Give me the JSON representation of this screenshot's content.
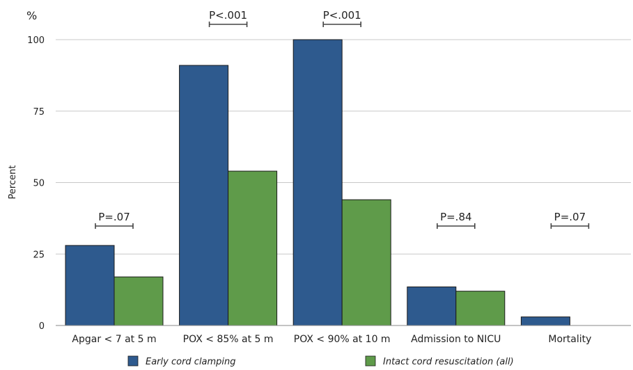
{
  "chart_data": {
    "type": "bar",
    "unit_label": "%",
    "ylabel": "Percent",
    "ylim": [
      0,
      100
    ],
    "yticks": [
      0,
      25,
      50,
      75,
      100
    ],
    "grid": true,
    "legend_position": "bottom",
    "categories": [
      "Apgar < 7 at 5 m",
      "POX < 85% at 5 m",
      "POX < 90% at 10 m",
      "Admission to NICU",
      "Mortality"
    ],
    "series": [
      {
        "name": "Early cord clamping",
        "color": "#2e5a8e",
        "values": [
          28,
          91,
          100,
          13.5,
          3
        ]
      },
      {
        "name": "Intact cord resuscitation (all)",
        "color": "#5f9b4a",
        "values": [
          17,
          54,
          44,
          12,
          0
        ]
      }
    ],
    "annotations": [
      "P=.07",
      "P<.001",
      "P<.001",
      "P=.84",
      "P=.07"
    ]
  }
}
